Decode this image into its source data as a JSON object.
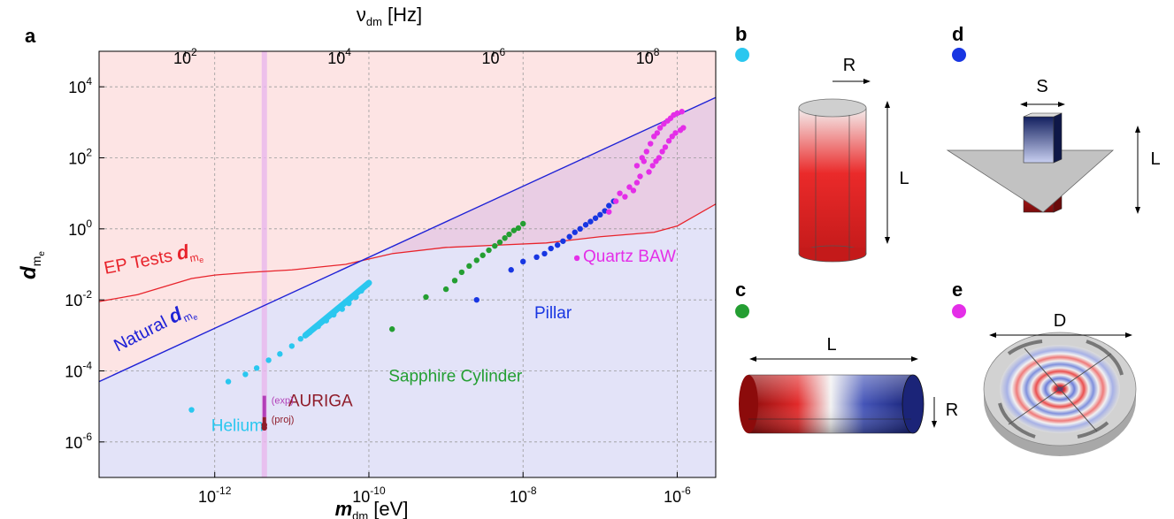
{
  "chart_data": {
    "type": "scatter",
    "panel_label": "a",
    "x_axis": {
      "xscale": "log",
      "xlim": [
        3.16e-14,
        3.16e-06
      ],
      "ticks": [
        1e-12,
        1e-10,
        1e-08,
        1e-06
      ],
      "tick_labels": [
        {
          "base": "10",
          "exp": "-12"
        },
        {
          "base": "10",
          "exp": "-10"
        },
        {
          "base": "10",
          "exp": "-8"
        },
        {
          "base": "10",
          "exp": "-6"
        }
      ],
      "label": {
        "sym": "m",
        "sub": "dm",
        "unit": " [eV]"
      }
    },
    "top_axis": {
      "ticks_ev": [
        4.136e-13,
        4.136e-11,
        4.136e-09,
        4.136e-07
      ],
      "tick_labels": [
        {
          "base": "10",
          "exp": "2"
        },
        {
          "base": "10",
          "exp": "4"
        },
        {
          "base": "10",
          "exp": "6"
        },
        {
          "base": "10",
          "exp": "8"
        }
      ],
      "label": {
        "sym": "ν",
        "sub": "dm",
        "unit": " [Hz]"
      }
    },
    "y_axis": {
      "yscale": "log",
      "ylim": [
        1e-07,
        100000.0
      ],
      "ticks": [
        1e-06,
        0.0001,
        0.01,
        1.0,
        100.0,
        10000.0
      ],
      "tick_labels": [
        {
          "base": "10",
          "exp": "-6"
        },
        {
          "base": "10",
          "exp": "-4"
        },
        {
          "base": "10",
          "exp": "-2"
        },
        {
          "base": "10",
          "exp": "0"
        },
        {
          "base": "10",
          "exp": "2"
        },
        {
          "base": "10",
          "exp": "4"
        }
      ],
      "label": {
        "sym": "d",
        "sub": "m",
        "subsub": "e"
      }
    },
    "grid": true,
    "regions": {
      "natural_line": {
        "x": [
          3.16e-14,
          3.16e-06
        ],
        "y": [
          5e-05,
          5000.0
        ],
        "color": "#1f22d6",
        "fill_below": "#e3e3f8"
      },
      "ep_tests": {
        "color": "#e8232b",
        "fill_above": "#fde4e4",
        "x": [
          3.16e-14,
          1e-13,
          2e-13,
          5e-13,
          1e-12,
          3e-12,
          1e-11,
          5e-11,
          2e-10,
          1e-09,
          5e-09,
          2e-08,
          1e-07,
          5e-07,
          1e-06,
          3.16e-06
        ],
        "y": [
          0.009,
          0.014,
          0.022,
          0.04,
          0.05,
          0.06,
          0.07,
          0.1,
          0.2,
          0.3,
          0.35,
          0.4,
          0.6,
          0.8,
          1.2,
          5
        ]
      },
      "auriga_band": {
        "x": 4.4e-12,
        "color": "#e8b7ec"
      }
    },
    "series": [
      {
        "name": "Helium",
        "color": "#2ac7ef",
        "label_pos": [
          9e-13,
          2e-06
        ],
        "points": [
          [
            5e-13,
            8e-06
          ],
          [
            1.5e-12,
            5e-05
          ],
          [
            2.5e-12,
            8e-05
          ],
          [
            3.5e-12,
            0.00012
          ],
          [
            5e-12,
            0.0002
          ],
          [
            7e-12,
            0.0003
          ],
          [
            1e-11,
            0.0005
          ],
          [
            1.3e-11,
            0.0008
          ],
          [
            1.7e-11,
            0.0012
          ],
          [
            2.2e-11,
            0.0018
          ],
          [
            2.8e-11,
            0.0026
          ],
          [
            3.5e-11,
            0.0038
          ],
          [
            4.5e-11,
            0.0055
          ],
          [
            5.5e-11,
            0.008
          ],
          [
            6.8e-11,
            0.012
          ],
          [
            8e-11,
            0.018
          ],
          [
            9e-11,
            0.025
          ],
          [
            1e-10,
            0.03
          ]
        ],
        "line_segment": [
          [
            1.5e-11,
            0.001
          ],
          [
            1e-10,
            0.03
          ]
        ]
      },
      {
        "name": "Sapphire Cylinder",
        "color": "#249e32",
        "label_pos": [
          1.8e-10,
          5e-05
        ],
        "points": [
          [
            2e-10,
            0.0015
          ],
          [
            5.5e-10,
            0.012
          ],
          [
            1e-09,
            0.02
          ],
          [
            1.3e-09,
            0.035
          ],
          [
            1.6e-09,
            0.06
          ],
          [
            2e-09,
            0.09
          ],
          [
            2.5e-09,
            0.13
          ],
          [
            3e-09,
            0.18
          ],
          [
            3.6e-09,
            0.25
          ],
          [
            4.3e-09,
            0.33
          ],
          [
            5e-09,
            0.42
          ],
          [
            5.8e-09,
            0.55
          ],
          [
            6.6e-09,
            0.7
          ],
          [
            7.6e-09,
            0.9
          ],
          [
            8.7e-09,
            1.05
          ],
          [
            1e-08,
            1.4
          ]
        ]
      },
      {
        "name": "Pillar",
        "color": "#1836e2",
        "label_pos": [
          1.4e-08,
          0.003
        ],
        "points": [
          [
            2.5e-09,
            0.01
          ],
          [
            7e-09,
            0.07
          ],
          [
            1e-08,
            0.12
          ],
          [
            1.5e-08,
            0.16
          ],
          [
            1.9e-08,
            0.2
          ],
          [
            2.3e-08,
            0.28
          ],
          [
            2.8e-08,
            0.35
          ],
          [
            3.3e-08,
            0.45
          ],
          [
            4e-08,
            0.6
          ],
          [
            4.7e-08,
            0.8
          ],
          [
            5.5e-08,
            1.0
          ],
          [
            6.5e-08,
            1.3
          ],
          [
            7.5e-08,
            1.6
          ],
          [
            8.7e-08,
            2.0
          ],
          [
            1e-07,
            2.5
          ],
          [
            1.15e-07,
            3.2
          ],
          [
            1.3e-07,
            4.5
          ],
          [
            1.5e-07,
            6
          ]
        ]
      },
      {
        "name": "Quartz BAW",
        "color": "#e42ee8",
        "label_pos": [
          6e-08,
          0.12
        ],
        "points": [
          [
            5e-08,
            0.15
          ],
          [
            1.3e-07,
            3
          ],
          [
            1.6e-07,
            6
          ],
          [
            1.8e-07,
            10
          ],
          [
            2.1e-07,
            8
          ],
          [
            2.4e-07,
            15
          ],
          [
            2.7e-07,
            12
          ],
          [
            3e-07,
            20
          ],
          [
            3e-07,
            60
          ],
          [
            3.3e-07,
            30
          ],
          [
            3.5e-07,
            100
          ],
          [
            3.7e-07,
            80
          ],
          [
            4e-07,
            150
          ],
          [
            4.3e-07,
            40
          ],
          [
            4.5e-07,
            250
          ],
          [
            4.8e-07,
            60
          ],
          [
            5e-07,
            400
          ],
          [
            5.3e-07,
            80
          ],
          [
            5.5e-07,
            500
          ],
          [
            5.8e-07,
            100
          ],
          [
            6e-07,
            700
          ],
          [
            6.4e-07,
            150
          ],
          [
            6.7e-07,
            900
          ],
          [
            7e-07,
            200
          ],
          [
            7.5e-07,
            1100
          ],
          [
            7.8e-07,
            300
          ],
          [
            8.2e-07,
            1300
          ],
          [
            8.6e-07,
            400
          ],
          [
            9e-07,
            1600
          ],
          [
            9.5e-07,
            500
          ],
          [
            1e-06,
            1800
          ],
          [
            1.1e-06,
            600
          ],
          [
            1.15e-06,
            2000
          ],
          [
            1.2e-06,
            700
          ]
        ]
      },
      {
        "name": "AURIGA",
        "color": "#8f1c2a",
        "label_pos": [
          9e-12,
          1e-05
        ],
        "tags": [
          "(exp)",
          "(proj)"
        ],
        "points": [
          [
            4.4e-12,
            2.5e-06
          ],
          [
            4.4e-12,
            3e-06
          ]
        ],
        "vertical": {
          "x": 4.4e-12,
          "y": [
            2.5e-06,
            2e-05
          ],
          "exp_color": "#b23fb8"
        }
      }
    ],
    "annotations": [
      {
        "text": "EP Tests ",
        "sym": "d",
        "sub": "m",
        "subsub": "e",
        "color": "#e8232b"
      },
      {
        "text": "Natural ",
        "sym": "d",
        "sub": "m",
        "subsub": "e",
        "color": "#1f22d6"
      }
    ]
  },
  "panels": {
    "b": {
      "letter": "b",
      "dot_color": "#2ac7ef",
      "labels": [
        "R",
        "L"
      ]
    },
    "c": {
      "letter": "c",
      "dot_color": "#249e32",
      "labels": [
        "L",
        "R"
      ]
    },
    "d": {
      "letter": "d",
      "dot_color": "#1836e2",
      "labels": [
        "S",
        "L"
      ]
    },
    "e": {
      "letter": "e",
      "dot_color": "#e42ee8",
      "labels": [
        "D"
      ]
    }
  }
}
